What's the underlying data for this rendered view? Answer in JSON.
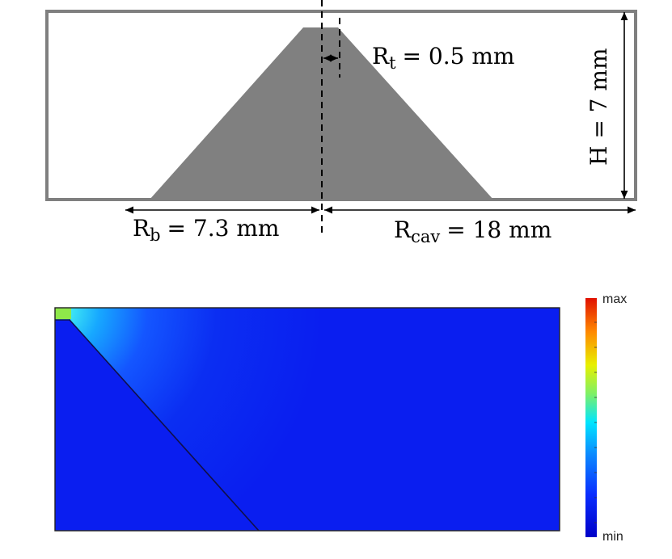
{
  "diagram": {
    "rt": {
      "symbol": "R",
      "subscript": "t",
      "value": "= 0.5 mm"
    },
    "height": {
      "text": "H = 7 mm"
    },
    "rb": {
      "symbol": "R",
      "subscript": "b",
      "value": "= 7.3 mm"
    },
    "rcav": {
      "symbol": "R",
      "subscript": "cav",
      "value": "= 18 mm"
    }
  },
  "field_plot": {
    "colorbar": {
      "max_label": "max",
      "min_label": "min"
    },
    "colors": {
      "background_min": "#0a1ef0",
      "hot": "#8fe84a",
      "cyan": "#36e6f5",
      "mid": "#1f7dff"
    }
  }
}
